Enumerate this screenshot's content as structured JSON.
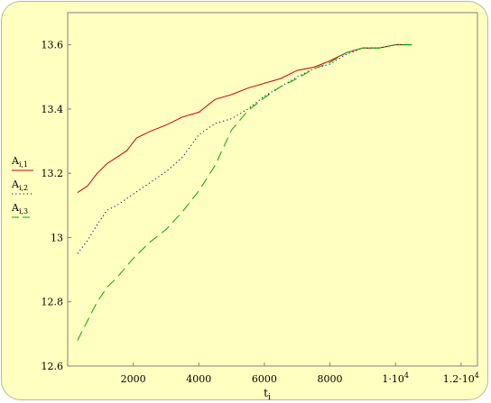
{
  "chart_data": {
    "type": "line",
    "xlabel": "t",
    "xlabel_sub": "i",
    "xlim": [
      0,
      12500
    ],
    "ylim": [
      12.6,
      13.7
    ],
    "x_ticks": [
      2000,
      4000,
      6000,
      8000,
      10000,
      12000
    ],
    "x_tick_labels": [
      {
        "base": "2000",
        "exp": ""
      },
      {
        "base": "4000",
        "exp": ""
      },
      {
        "base": "6000",
        "exp": ""
      },
      {
        "base": "8000",
        "exp": ""
      },
      {
        "base": "1·10",
        "exp": "4"
      },
      {
        "base": "1.2·10",
        "exp": "4"
      }
    ],
    "y_ticks": [
      12.6,
      12.8,
      13,
      13.2,
      13.4,
      13.6
    ],
    "y_tick_labels": [
      "12.6",
      "12.8",
      "13",
      "13.2",
      "13.4",
      "13.6"
    ],
    "legend_position": "left",
    "series": [
      {
        "name": "A",
        "name_sub": "i,1",
        "color": "#cc0000",
        "style": "solid",
        "x": [
          300,
          600,
          900,
          1200,
          1500,
          1800,
          2100,
          2500,
          3000,
          3500,
          4000,
          4500,
          5000,
          5500,
          6000,
          6500,
          7000,
          7500,
          8000,
          8500,
          9000,
          9500,
          10000,
          10500
        ],
        "y": [
          13.14,
          13.16,
          13.2,
          13.23,
          13.25,
          13.27,
          13.31,
          13.33,
          13.35,
          13.375,
          13.39,
          13.43,
          13.445,
          13.465,
          13.48,
          13.495,
          13.52,
          13.53,
          13.55,
          13.575,
          13.59,
          13.59,
          13.6,
          13.6
        ]
      },
      {
        "name": "A",
        "name_sub": "i,2",
        "color": "#000080",
        "style": "dotted",
        "x": [
          300,
          600,
          900,
          1200,
          1500,
          2000,
          2500,
          3000,
          3500,
          4000,
          4500,
          5000,
          5500,
          6000,
          6500,
          7000,
          7500,
          8000,
          8500,
          9000,
          9500,
          10000,
          10500
        ],
        "y": [
          12.95,
          12.99,
          13.04,
          13.085,
          13.1,
          13.135,
          13.17,
          13.205,
          13.25,
          13.32,
          13.355,
          13.37,
          13.4,
          13.44,
          13.47,
          13.5,
          13.525,
          13.54,
          13.57,
          13.59,
          13.59,
          13.6,
          13.6
        ]
      },
      {
        "name": "A",
        "name_sub": "i,3",
        "color": "#00aa00",
        "style": "dashed",
        "x": [
          300,
          600,
          900,
          1200,
          1500,
          2000,
          2500,
          3000,
          3500,
          4000,
          4500,
          5000,
          5500,
          6000,
          6500,
          7000,
          7500,
          8000,
          8500,
          9000,
          9500,
          10000,
          10500
        ],
        "y": [
          12.68,
          12.74,
          12.8,
          12.845,
          12.875,
          12.935,
          12.985,
          13.025,
          13.08,
          13.145,
          13.225,
          13.335,
          13.395,
          13.435,
          13.47,
          13.495,
          13.525,
          13.545,
          13.575,
          13.59,
          13.59,
          13.6,
          13.6
        ]
      }
    ]
  }
}
